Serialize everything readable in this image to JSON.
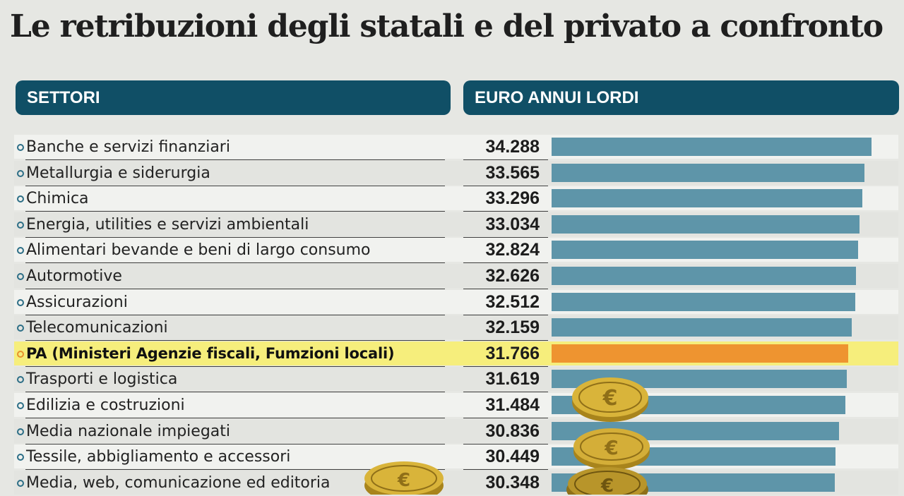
{
  "title": "Le retribuzioni degli statali e del privato a confronto",
  "headers": {
    "sectors": "SETTORI",
    "euro": "EURO ANNUI LORDI"
  },
  "colors": {
    "header": "#104f66",
    "bar": "#5e95a9",
    "highlight_bar": "#ee9430",
    "highlight_row": "#f6ee7c"
  },
  "chart_data": {
    "type": "bar",
    "orientation": "horizontal",
    "title": "Le retribuzioni degli statali e del privato a confronto",
    "xlabel": "EURO ANNUI LORDI",
    "ylabel": "SETTORI",
    "categories": [
      "Banche e servizi finanziari",
      "Metallurgia e siderurgia",
      "Chimica",
      "Energia, utilities e servizi ambientali",
      "Alimentari bevande e beni di largo consumo",
      "Autormotive",
      "Assicurazioni",
      "Telecomunicazioni",
      "PA (Ministeri Agenzie fiscali, Fumzioni locali)",
      "Trasporti e logistica",
      "Edilizia e costruzioni",
      "Media nazionale impiegati",
      "Tessile, abbigliamento e accessori",
      "Media, web, comunicazione ed editoria"
    ],
    "values": [
      34288,
      33565,
      33296,
      33034,
      32824,
      32626,
      32512,
      32159,
      31766,
      31619,
      31484,
      30836,
      30449,
      30348
    ],
    "value_labels": [
      "34.288",
      "33.565",
      "33.296",
      "33.034",
      "32.824",
      "32.626",
      "32.512",
      "32.159",
      "31.766",
      "31.619",
      "31.484",
      "30.836",
      "30.449",
      "30.348"
    ],
    "highlighted": "PA (Ministeri Agenzie fiscali, Fumzioni locali)",
    "xlim": [
      0,
      34288
    ]
  }
}
